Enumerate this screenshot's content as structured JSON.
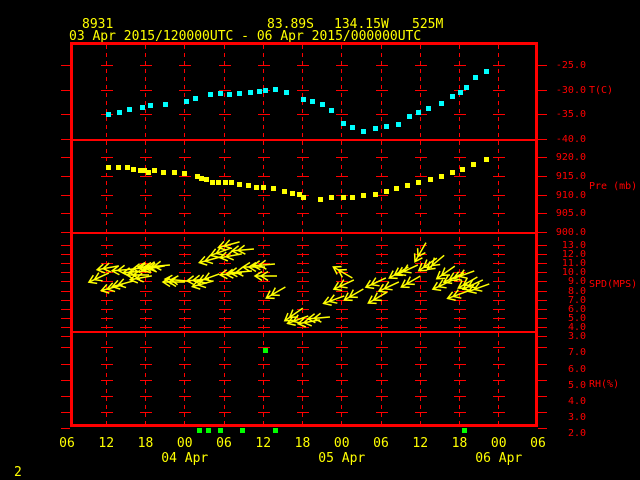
{
  "header": {
    "station_id": "8931",
    "latitude": "83.89S",
    "longitude": "134.15W",
    "elevation": "525M",
    "time_range": "03 Apr 2015/120000UTC - 06 Apr 2015/000000UTC"
  },
  "page_number": "2",
  "colors": {
    "background": "#000000",
    "frame": "#ff0000",
    "axis_text": "#ff0000",
    "time_text": "#ffff00",
    "temperature": "#00ffff",
    "pressure": "#ffff00",
    "wind": "#ffff00",
    "humidity": "#00ff00"
  },
  "x_axis": {
    "tick_labels": [
      "06",
      "12",
      "18",
      "00",
      "06",
      "12",
      "18",
      "00",
      "06",
      "12",
      "18",
      "00",
      "06"
    ],
    "date_labels": [
      {
        "label": "04 Apr",
        "tick_index": 3
      },
      {
        "label": "05 Apr",
        "tick_index": 7
      },
      {
        "label": "06 Apr",
        "tick_index": 11
      }
    ]
  },
  "panels": [
    {
      "id": "temperature",
      "unit": "T(C)",
      "tick_labels": [
        "-25.0",
        "-30.0",
        "-35.0",
        "-40.0"
      ]
    },
    {
      "id": "pressure",
      "unit": "Pre (mb)",
      "tick_labels": [
        "920.0",
        "915.0",
        "910.0",
        "905.0",
        "900.0"
      ]
    },
    {
      "id": "wind_speed",
      "unit": "SPD(MPS)",
      "tick_labels": [
        "13.0",
        "12.0",
        "11.0",
        "10.0",
        "9.0",
        "8.0",
        "7.0",
        "6.0",
        "5.0",
        "4.0",
        "3.0"
      ]
    },
    {
      "id": "humidity",
      "unit": "RH(%)",
      "tick_labels": [
        "7.0",
        "6.0",
        "5.0",
        "4.0",
        "3.0",
        "2.0"
      ]
    }
  ],
  "chart_data": [
    {
      "type": "scatter",
      "title": "Temperature",
      "ylabel": "T(C)",
      "ylim": [
        -40,
        -20
      ],
      "x_unit": "hours since 03 Apr 2015 0600UTC",
      "xlim": [
        0,
        72
      ],
      "points": [
        [
          6.3,
          -35.1
        ],
        [
          8.1,
          -34.7
        ],
        [
          9.6,
          -34.1
        ],
        [
          11.5,
          -33.7
        ],
        [
          12.8,
          -33.3
        ],
        [
          15.0,
          -33.1
        ],
        [
          18.3,
          -32.3
        ],
        [
          19.6,
          -31.7
        ],
        [
          21.9,
          -30.9
        ],
        [
          23.4,
          -30.7
        ],
        [
          24.9,
          -30.9
        ],
        [
          26.4,
          -30.7
        ],
        [
          28.0,
          -30.5
        ],
        [
          29.5,
          -30.3
        ],
        [
          30.3,
          -30.1
        ],
        [
          31.8,
          -29.9
        ],
        [
          33.5,
          -30.5
        ],
        [
          36.1,
          -31.9
        ],
        [
          37.6,
          -32.5
        ],
        [
          39.0,
          -33.1
        ],
        [
          40.5,
          -34.3
        ],
        [
          42.2,
          -36.8
        ],
        [
          43.7,
          -37.6
        ],
        [
          45.4,
          -38.4
        ],
        [
          47.1,
          -37.8
        ],
        [
          48.9,
          -37.4
        ],
        [
          50.6,
          -37.0
        ],
        [
          52.3,
          -35.5
        ],
        [
          53.8,
          -34.7
        ],
        [
          55.3,
          -33.9
        ],
        [
          57.3,
          -32.9
        ],
        [
          59.0,
          -31.3
        ],
        [
          60.1,
          -30.5
        ],
        [
          61.0,
          -29.5
        ],
        [
          62.5,
          -27.6
        ],
        [
          64.2,
          -26.4
        ]
      ]
    },
    {
      "type": "scatter",
      "title": "Pressure",
      "ylabel": "Pre (mb)",
      "ylim": [
        900,
        925
      ],
      "x_unit": "hours since 03 Apr 2015 0600UTC",
      "xlim": [
        0,
        72
      ],
      "points": [
        [
          6.4,
          917.1
        ],
        [
          7.9,
          917.1
        ],
        [
          9.3,
          917.1
        ],
        [
          10.1,
          916.8
        ],
        [
          11.2,
          916.5
        ],
        [
          11.8,
          916.3
        ],
        [
          12.5,
          916.0
        ],
        [
          13.3,
          916.5
        ],
        [
          14.7,
          916.0
        ],
        [
          16.5,
          916.0
        ],
        [
          18.0,
          915.7
        ],
        [
          19.9,
          914.7
        ],
        [
          20.6,
          914.4
        ],
        [
          21.4,
          913.9
        ],
        [
          22.3,
          913.3
        ],
        [
          23.1,
          913.1
        ],
        [
          24.3,
          913.1
        ],
        [
          25.2,
          913.1
        ],
        [
          26.4,
          912.8
        ],
        [
          27.7,
          912.3
        ],
        [
          29.0,
          912.0
        ],
        [
          30.0,
          912.0
        ],
        [
          31.5,
          911.5
        ],
        [
          33.3,
          910.7
        ],
        [
          34.5,
          910.4
        ],
        [
          35.6,
          909.9
        ],
        [
          36.2,
          909.3
        ],
        [
          38.7,
          908.8
        ],
        [
          40.5,
          909.3
        ],
        [
          42.2,
          909.3
        ],
        [
          43.7,
          909.3
        ],
        [
          45.4,
          909.6
        ],
        [
          47.1,
          910.1
        ],
        [
          48.9,
          910.9
        ],
        [
          50.4,
          911.5
        ],
        [
          52.1,
          912.3
        ],
        [
          53.7,
          913.1
        ],
        [
          55.5,
          914.1
        ],
        [
          57.3,
          914.7
        ],
        [
          59.0,
          916.0
        ],
        [
          60.5,
          916.8
        ],
        [
          62.2,
          918.1
        ],
        [
          64.2,
          919.2
        ]
      ]
    },
    {
      "type": "scatter",
      "title": "Wind speed and direction arrows",
      "ylabel": "SPD(MPS)",
      "ylim": [
        3,
        13.5
      ],
      "x_unit": "hours since 03 Apr 2015 0600UTC",
      "xlim": [
        0,
        72
      ],
      "points_hvd": [
        [
          4.7,
          9.4,
          205
        ],
        [
          6.1,
          10.5,
          190
        ],
        [
          6.7,
          8.3,
          195
        ],
        [
          8.4,
          10.3,
          185
        ],
        [
          8.4,
          8.7,
          195
        ],
        [
          10.1,
          10.0,
          185
        ],
        [
          10.7,
          9.7,
          180
        ],
        [
          11.2,
          9.4,
          190
        ],
        [
          11.6,
          10.5,
          185
        ],
        [
          12.4,
          10.6,
          180
        ],
        [
          13.1,
          10.5,
          190
        ],
        [
          13.9,
          10.7,
          185
        ],
        [
          16.2,
          8.9,
          180
        ],
        [
          16.5,
          9.2,
          175
        ],
        [
          19.9,
          9.2,
          185
        ],
        [
          20.6,
          8.7,
          195
        ],
        [
          21.6,
          9.4,
          200
        ],
        [
          21.7,
          11.4,
          195
        ],
        [
          23.4,
          12.2,
          200
        ],
        [
          24.6,
          13.0,
          195
        ],
        [
          24.9,
          11.8,
          190
        ],
        [
          26.8,
          12.5,
          185
        ],
        [
          24.9,
          9.8,
          185
        ],
        [
          26.4,
          10.0,
          185
        ],
        [
          28.4,
          10.6,
          180
        ],
        [
          30.0,
          10.8,
          185
        ],
        [
          30.3,
          9.6,
          180
        ],
        [
          31.8,
          7.7,
          210
        ],
        [
          34.5,
          5.3,
          215
        ],
        [
          35.2,
          4.8,
          200
        ],
        [
          36.8,
          4.5,
          190
        ],
        [
          38.4,
          5.0,
          185
        ],
        [
          40.7,
          7.0,
          200
        ],
        [
          42.0,
          10.0,
          150
        ],
        [
          42.2,
          8.6,
          205
        ],
        [
          43.7,
          7.5,
          210
        ],
        [
          47.1,
          8.8,
          205
        ],
        [
          47.4,
          7.2,
          210
        ],
        [
          49.1,
          8.4,
          205
        ],
        [
          50.6,
          9.9,
          210
        ],
        [
          52.0,
          10.3,
          205
        ],
        [
          52.4,
          8.9,
          210
        ],
        [
          54.0,
          12.1,
          240
        ],
        [
          55.0,
          10.8,
          215
        ],
        [
          56.3,
          11.0,
          220
        ],
        [
          57.8,
          9.9,
          215
        ],
        [
          57.3,
          8.6,
          205
        ],
        [
          59.0,
          9.4,
          205
        ],
        [
          59.6,
          7.5,
          200
        ],
        [
          60.5,
          9.7,
          200
        ],
        [
          61.1,
          8.8,
          210
        ],
        [
          61.9,
          8.6,
          205
        ],
        [
          62.8,
          8.3,
          200
        ]
      ]
    },
    {
      "type": "scatter",
      "title": "Relative humidity",
      "ylabel": "RH(%)",
      "ylim": [
        2,
        8
      ],
      "x_unit": "hours since 03 Apr 2015 0600UTC",
      "xlim": [
        0,
        72
      ],
      "points": [
        [
          20.2,
          2.0
        ],
        [
          21.7,
          2.0
        ],
        [
          23.4,
          2.0
        ],
        [
          26.8,
          2.0
        ],
        [
          30.3,
          6.8
        ],
        [
          31.8,
          2.0
        ],
        [
          60.8,
          2.0
        ]
      ]
    }
  ]
}
